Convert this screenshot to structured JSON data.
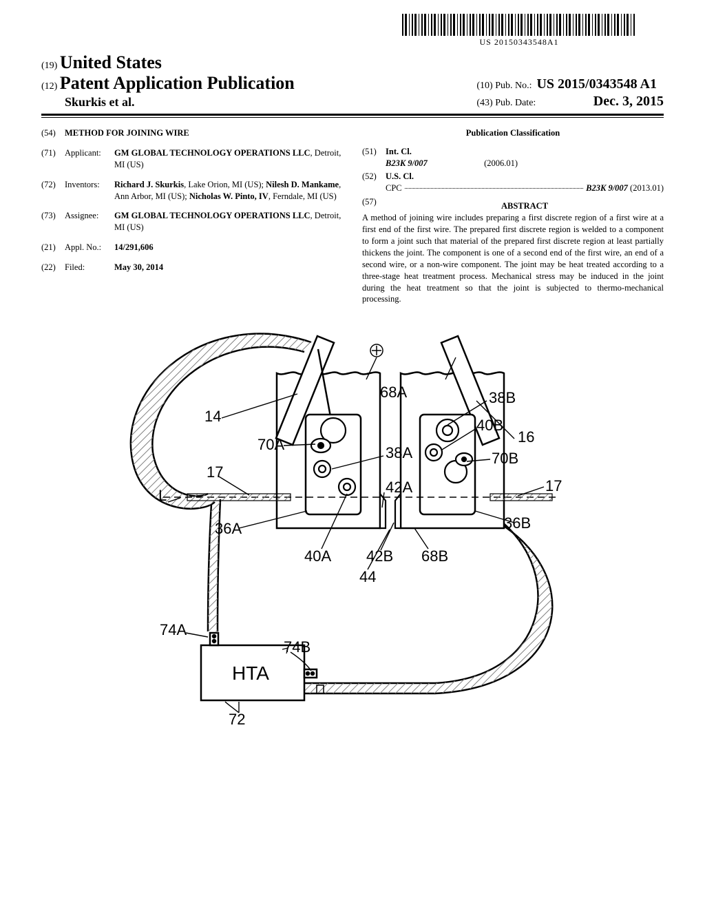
{
  "barcode_text": "US 20150343548A1",
  "header": {
    "code19": "(19)",
    "country": "United States",
    "code12": "(12)",
    "pub_type": "Patent Application Publication",
    "authors_header": "Skurkis et al.",
    "code10": "(10)",
    "pub_no_label": "Pub. No.:",
    "pub_no": "US 2015/0343548 A1",
    "code43": "(43)",
    "pub_date_label": "Pub. Date:",
    "pub_date": "Dec. 3, 2015"
  },
  "fields": {
    "f54": {
      "code": "(54)",
      "title": "METHOD FOR JOINING WIRE"
    },
    "f71": {
      "code": "(71)",
      "label": "Applicant:",
      "body_strong": "GM GLOBAL TECHNOLOGY OPERATIONS LLC",
      "body_rest": ", Detroit, MI (US)"
    },
    "f72": {
      "code": "(72)",
      "label": "Inventors:",
      "body": "Richard J. Skurkis, Lake Orion, MI (US); Nilesh D. Mankame, Ann Arbor, MI (US); Nicholas W. Pinto, IV, Ferndale, MI (US)",
      "names": [
        "Richard J. Skurkis",
        "Nilesh D. Mankame",
        "Nicholas W. Pinto, IV"
      ],
      "body_html": "<b>Richard J. Skurkis</b>, Lake Orion, MI (US); <b>Nilesh D. Mankame</b>, Ann Arbor, MI (US); <b>Nicholas W. Pinto, IV</b>, Ferndale, MI (US)"
    },
    "f73": {
      "code": "(73)",
      "label": "Assignee:",
      "body_strong": "GM GLOBAL TECHNOLOGY OPERATIONS LLC",
      "body_rest": ", Detroit, MI (US)"
    },
    "f21": {
      "code": "(21)",
      "label": "Appl. No.:",
      "body_strong": "14/291,606"
    },
    "f22": {
      "code": "(22)",
      "label": "Filed:",
      "body_strong": "May 30, 2014"
    }
  },
  "classification": {
    "title": "Publication Classification",
    "f51": {
      "code": "(51)",
      "label": "Int. Cl.",
      "cls_strong": "B23K 9/007",
      "cls_year": "(2006.01)"
    },
    "f52": {
      "code": "(52)",
      "label": "U.S. Cl.",
      "cpc_label": "CPC",
      "cpc_val": "B23K 9/007",
      "cpc_year": "(2013.01)"
    }
  },
  "abstract": {
    "code": "(57)",
    "title": "ABSTRACT",
    "text": "A method of joining wire includes preparing a first discrete region of a first wire at a first end of the first wire. The prepared first discrete region is welded to a component to form a joint such that material of the prepared first discrete region at least partially thickens the joint. The component is one of a second end of the first wire, an end of a second wire, or a non-wire component. The joint may be heat treated according to a three-stage heat treatment process. Mechanical stress may be induced in the joint during the heat treatment so that the joint is subjected to thermo-mechanical processing."
  },
  "figure": {
    "stroke_color": "#000000",
    "stroke_width_main": 2.5,
    "stroke_width_thin": 1.8,
    "hatch_color": "#808080",
    "labels": {
      "l14": "14",
      "l16": "16",
      "l17a": "17",
      "l17b": "17",
      "l36A": "36A",
      "l36B": "36B",
      "l38A": "38A",
      "l38B": "38B",
      "l40A": "40A",
      "l40B": "40B",
      "l42A": "42A",
      "l42B": "42B",
      "l44": "44",
      "l68A": "68A",
      "l68B": "68B",
      "l70A": "70A",
      "l70B": "70B",
      "l72": "72",
      "l74A": "74A",
      "l74B": "74B",
      "lL": "L",
      "lHTA": "HTA"
    }
  }
}
